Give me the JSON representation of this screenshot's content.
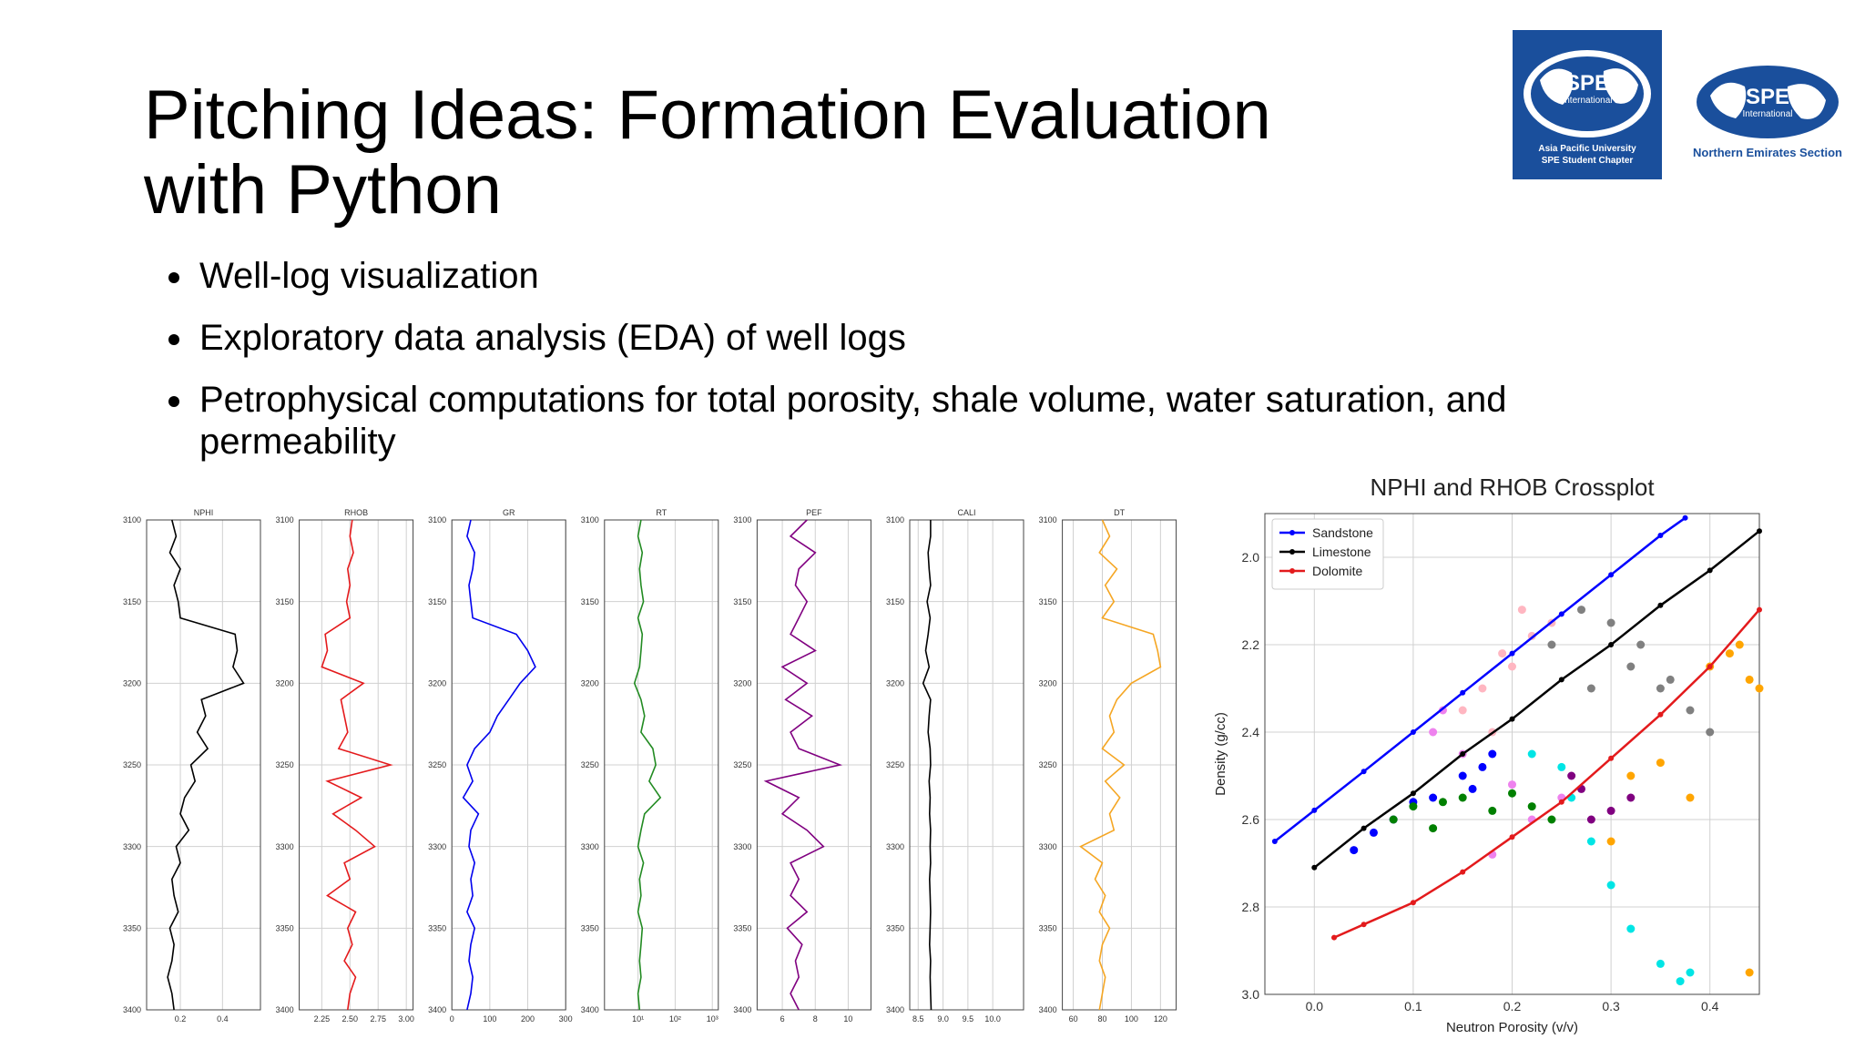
{
  "header": {
    "title": "Pitching Ideas: Formation Evaluation with Python"
  },
  "logos": [
    {
      "mark": "SPE",
      "sub": "International",
      "lines": [
        "Asia Pacific University",
        "SPE Student Chapter"
      ]
    },
    {
      "mark": "SPE",
      "sub": "International",
      "lines": [
        "Northern Emirates Section"
      ]
    }
  ],
  "bullets": [
    "Well-log visualization",
    "Exploratory data analysis (EDA) of well logs",
    "Petrophysical computations for total porosity, shale volume, water saturation, and permeability"
  ],
  "chart_data": [
    {
      "type": "line",
      "title": "NPHI",
      "color": "#000000",
      "grid": true,
      "xlim": [
        0.04,
        0.58
      ],
      "xticks": [
        0.2,
        0.4
      ],
      "ylim": [
        3400,
        3100
      ],
      "yticks": [
        3100,
        3150,
        3200,
        3250,
        3300,
        3350,
        3400
      ],
      "depth": [
        3100,
        3110,
        3120,
        3130,
        3140,
        3150,
        3160,
        3170,
        3180,
        3190,
        3200,
        3210,
        3220,
        3230,
        3240,
        3250,
        3260,
        3270,
        3280,
        3290,
        3300,
        3310,
        3320,
        3330,
        3340,
        3350,
        3360,
        3370,
        3380,
        3390,
        3400
      ],
      "values": [
        0.16,
        0.18,
        0.15,
        0.2,
        0.17,
        0.19,
        0.2,
        0.46,
        0.47,
        0.45,
        0.5,
        0.3,
        0.32,
        0.28,
        0.33,
        0.25,
        0.27,
        0.22,
        0.2,
        0.24,
        0.18,
        0.2,
        0.16,
        0.17,
        0.19,
        0.15,
        0.17,
        0.16,
        0.14,
        0.16,
        0.17
      ]
    },
    {
      "type": "line",
      "title": "RHOB",
      "color": "#e41a1c",
      "grid": true,
      "xlim": [
        2.05,
        3.06
      ],
      "xticks": [
        2.25,
        {
          "value": 2.5,
          "label": "2.50"
        },
        2.75,
        {
          "value": 3,
          "label": "3.00"
        }
      ],
      "ylim": [
        3400,
        3100
      ],
      "yticks": [
        3100,
        3150,
        3200,
        3250,
        3300,
        3350,
        3400
      ],
      "depth": [
        3100,
        3110,
        3120,
        3130,
        3140,
        3150,
        3160,
        3170,
        3180,
        3190,
        3200,
        3210,
        3220,
        3230,
        3240,
        3250,
        3260,
        3270,
        3280,
        3290,
        3300,
        3310,
        3320,
        3330,
        3340,
        3350,
        3360,
        3370,
        3380,
        3390,
        3400
      ],
      "values": [
        2.52,
        2.5,
        2.53,
        2.48,
        2.5,
        2.47,
        2.5,
        2.28,
        2.3,
        2.25,
        2.62,
        2.42,
        2.45,
        2.48,
        2.4,
        2.86,
        2.3,
        2.6,
        2.35,
        2.55,
        2.72,
        2.45,
        2.5,
        2.3,
        2.55,
        2.48,
        2.52,
        2.45,
        2.55,
        2.5,
        2.48
      ]
    },
    {
      "type": "line",
      "title": "GR",
      "color": "#0000ee",
      "grid": true,
      "xlim": [
        0,
        300
      ],
      "xticks": [
        0,
        100,
        200,
        300
      ],
      "ylim": [
        3400,
        3100
      ],
      "yticks": [
        3100,
        3150,
        3200,
        3250,
        3300,
        3350,
        3400
      ],
      "depth": [
        3100,
        3110,
        3120,
        3130,
        3140,
        3150,
        3160,
        3170,
        3180,
        3190,
        3200,
        3210,
        3220,
        3230,
        3240,
        3250,
        3260,
        3270,
        3280,
        3290,
        3300,
        3310,
        3320,
        3330,
        3340,
        3350,
        3360,
        3370,
        3380,
        3390,
        3400
      ],
      "values": [
        50,
        40,
        60,
        55,
        45,
        50,
        55,
        170,
        200,
        220,
        180,
        150,
        120,
        100,
        60,
        40,
        55,
        30,
        70,
        50,
        45,
        60,
        50,
        55,
        40,
        60,
        50,
        45,
        55,
        50,
        40
      ]
    },
    {
      "type": "line",
      "title": "RT",
      "color": "#228b22",
      "grid": true,
      "xscale": "log",
      "xlim": [
        1.25,
        1450
      ],
      "xticks": [
        {
          "value": 10,
          "label": "10¹"
        },
        {
          "value": 100,
          "label": "10²"
        },
        {
          "value": 1000,
          "label": "10³"
        }
      ],
      "ylim": [
        3400,
        3100
      ],
      "yticks": [
        3100,
        3150,
        3200,
        3250,
        3300,
        3350,
        3400
      ],
      "depth": [
        3100,
        3110,
        3120,
        3130,
        3140,
        3150,
        3160,
        3170,
        3180,
        3190,
        3200,
        3210,
        3220,
        3230,
        3240,
        3250,
        3260,
        3270,
        3280,
        3290,
        3300,
        3310,
        3320,
        3330,
        3340,
        3350,
        3360,
        3370,
        3380,
        3390,
        3400
      ],
      "values": [
        12,
        10,
        13,
        11,
        12,
        14,
        10,
        13,
        12,
        11,
        8,
        12,
        15,
        12,
        25,
        30,
        20,
        40,
        15,
        12,
        10,
        14,
        11,
        12,
        10,
        13,
        12,
        11,
        12,
        10,
        11
      ]
    },
    {
      "type": "line",
      "title": "PEF",
      "color": "#800080",
      "grid": true,
      "xlim": [
        4.47,
        11.38
      ],
      "xticks": [
        6,
        8,
        10
      ],
      "ylim": [
        3400,
        3100
      ],
      "yticks": [
        3100,
        3150,
        3200,
        3250,
        3300,
        3350,
        3400
      ],
      "depth": [
        3100,
        3110,
        3120,
        3130,
        3140,
        3150,
        3160,
        3170,
        3180,
        3190,
        3200,
        3210,
        3220,
        3230,
        3240,
        3250,
        3260,
        3270,
        3280,
        3290,
        3300,
        3310,
        3320,
        3330,
        3340,
        3350,
        3360,
        3370,
        3380,
        3390,
        3400
      ],
      "values": [
        7.5,
        6.5,
        8,
        7,
        6.8,
        7.5,
        7,
        6.5,
        8,
        6,
        7.5,
        6.2,
        7.8,
        6.5,
        7,
        9.5,
        5,
        7,
        6,
        7.5,
        8.5,
        6.5,
        7,
        6.5,
        7.5,
        6.3,
        7.2,
        6.8,
        7,
        6.5,
        7
      ]
    },
    {
      "type": "line",
      "title": "CALI",
      "color": "#000000",
      "grid": true,
      "xlim": [
        8.33,
        10.62
      ],
      "xticks": [
        8.5,
        {
          "value": 9,
          "label": "9.0"
        },
        9.5,
        {
          "value": 10,
          "label": "10.0"
        }
      ],
      "ylim": [
        3400,
        3100
      ],
      "yticks": [
        3100,
        3150,
        3200,
        3250,
        3300,
        3350,
        3400
      ],
      "depth": [
        3100,
        3110,
        3120,
        3130,
        3140,
        3150,
        3160,
        3170,
        3180,
        3190,
        3200,
        3210,
        3220,
        3230,
        3240,
        3250,
        3260,
        3270,
        3280,
        3290,
        3300,
        3310,
        3320,
        3330,
        3340,
        3350,
        3360,
        3370,
        3380,
        3390,
        3400
      ],
      "values": [
        8.75,
        8.75,
        8.7,
        8.72,
        8.75,
        8.68,
        8.74,
        8.7,
        8.65,
        8.72,
        8.6,
        8.75,
        8.72,
        8.7,
        8.74,
        8.75,
        8.72,
        8.74,
        8.73,
        8.75,
        8.74,
        8.75,
        8.73,
        8.74,
        8.75,
        8.74,
        8.73,
        8.75,
        8.74,
        8.75,
        8.76
      ]
    },
    {
      "type": "line",
      "title": "DT",
      "color": "#f5a623",
      "grid": true,
      "xlim": [
        52.5,
        130.8
      ],
      "xticks": [
        60,
        80,
        100,
        120
      ],
      "ylim": [
        3400,
        3100
      ],
      "yticks": [
        3100,
        3150,
        3200,
        3250,
        3300,
        3350,
        3400
      ],
      "depth": [
        3100,
        3110,
        3120,
        3130,
        3140,
        3150,
        3160,
        3170,
        3180,
        3190,
        3200,
        3210,
        3220,
        3230,
        3240,
        3250,
        3260,
        3270,
        3280,
        3290,
        3300,
        3310,
        3320,
        3330,
        3340,
        3350,
        3360,
        3370,
        3380,
        3390,
        3400
      ],
      "values": [
        80,
        85,
        78,
        90,
        82,
        88,
        80,
        115,
        118,
        120,
        100,
        90,
        85,
        88,
        80,
        95,
        82,
        92,
        85,
        88,
        65,
        80,
        75,
        82,
        78,
        85,
        80,
        78,
        82,
        80,
        78
      ]
    },
    {
      "type": "scatter",
      "title": "NPHI and RHOB Crossplot",
      "xlabel": "Neutron Porosity (v/v)",
      "ylabel": "Density (g/cc)",
      "grid": true,
      "legend": "upper left",
      "xlim": [
        -0.05,
        0.45
      ],
      "xticks": [
        {
          "value": 0,
          "label": "0.0"
        },
        0.1,
        0.2,
        0.3,
        0.4
      ],
      "ylim": [
        3.0,
        1.9
      ],
      "yticks": [
        {
          "value": 2,
          "label": "2.0"
        },
        2.2,
        2.4,
        2.6,
        2.8,
        {
          "value": 3,
          "label": "3.0"
        }
      ],
      "groups": [
        {
          "color": "#ffb6c1",
          "x": [
            0.15,
            0.17,
            0.19,
            0.2,
            0.22,
            0.24,
            0.18,
            0.21
          ],
          "values": [
            2.35,
            2.3,
            2.22,
            2.25,
            2.18,
            2.15,
            2.4,
            2.12
          ]
        },
        {
          "color": "#808080",
          "x": [
            0.24,
            0.27,
            0.3,
            0.32,
            0.35,
            0.38,
            0.4,
            0.28,
            0.33,
            0.36
          ],
          "values": [
            2.2,
            2.12,
            2.15,
            2.25,
            2.3,
            2.35,
            2.4,
            2.3,
            2.2,
            2.28
          ]
        },
        {
          "color": "#ffa500",
          "x": [
            0.4,
            0.42,
            0.44,
            0.43,
            0.45,
            0.32,
            0.35,
            0.38,
            0.3,
            0.44
          ],
          "values": [
            2.25,
            2.22,
            2.28,
            2.2,
            2.3,
            2.5,
            2.47,
            2.55,
            2.65,
            2.95
          ]
        },
        {
          "color": "#00e5e5",
          "x": [
            0.25,
            0.28,
            0.3,
            0.32,
            0.35,
            0.38,
            0.37,
            0.22,
            0.26
          ],
          "values": [
            2.48,
            2.65,
            2.75,
            2.85,
            2.93,
            2.95,
            2.97,
            2.45,
            2.55
          ]
        },
        {
          "color": "#ee82ee",
          "x": [
            0.12,
            0.15,
            0.2,
            0.22,
            0.18,
            0.25,
            0.13
          ],
          "values": [
            2.4,
            2.45,
            2.52,
            2.6,
            2.68,
            2.55,
            2.35
          ]
        },
        {
          "color": "#0000ff",
          "x": [
            0.04,
            0.06,
            0.08,
            0.1,
            0.12,
            0.15,
            0.17,
            0.18,
            0.16
          ],
          "values": [
            2.67,
            2.63,
            2.6,
            2.56,
            2.55,
            2.5,
            2.48,
            2.45,
            2.53
          ]
        },
        {
          "color": "#008000",
          "x": [
            0.08,
            0.1,
            0.13,
            0.15,
            0.18,
            0.2,
            0.22,
            0.24,
            0.12
          ],
          "values": [
            2.6,
            2.57,
            2.56,
            2.55,
            2.58,
            2.54,
            2.57,
            2.6,
            2.62
          ]
        },
        {
          "color": "#800080",
          "x": [
            0.27,
            0.3,
            0.28,
            0.26,
            0.32
          ],
          "values": [
            2.53,
            2.58,
            2.6,
            2.5,
            2.55
          ]
        }
      ],
      "series": [
        {
          "name": "Sandstone",
          "color": "#0000ff",
          "x": [
            -0.04,
            0,
            0.05,
            0.1,
            0.15,
            0.2,
            0.25,
            0.3,
            0.35,
            0.375
          ],
          "values": [
            2.65,
            2.579,
            2.49,
            2.4,
            2.31,
            2.22,
            2.13,
            2.04,
            1.95,
            1.91
          ]
        },
        {
          "name": "Limestone",
          "color": "#000000",
          "x": [
            0,
            0.05,
            0.1,
            0.15,
            0.2,
            0.25,
            0.3,
            0.35,
            0.4,
            0.45
          ],
          "values": [
            2.71,
            2.62,
            2.54,
            2.45,
            2.37,
            2.28,
            2.2,
            2.11,
            2.03,
            1.94
          ]
        },
        {
          "name": "Dolomite",
          "color": "#e31a1c",
          "x": [
            0.02,
            0.05,
            0.1,
            0.15,
            0.2,
            0.25,
            0.3,
            0.35,
            0.4,
            0.45
          ],
          "values": [
            2.87,
            2.84,
            2.79,
            2.72,
            2.64,
            2.56,
            2.46,
            2.36,
            2.25,
            2.12
          ]
        }
      ]
    }
  ]
}
